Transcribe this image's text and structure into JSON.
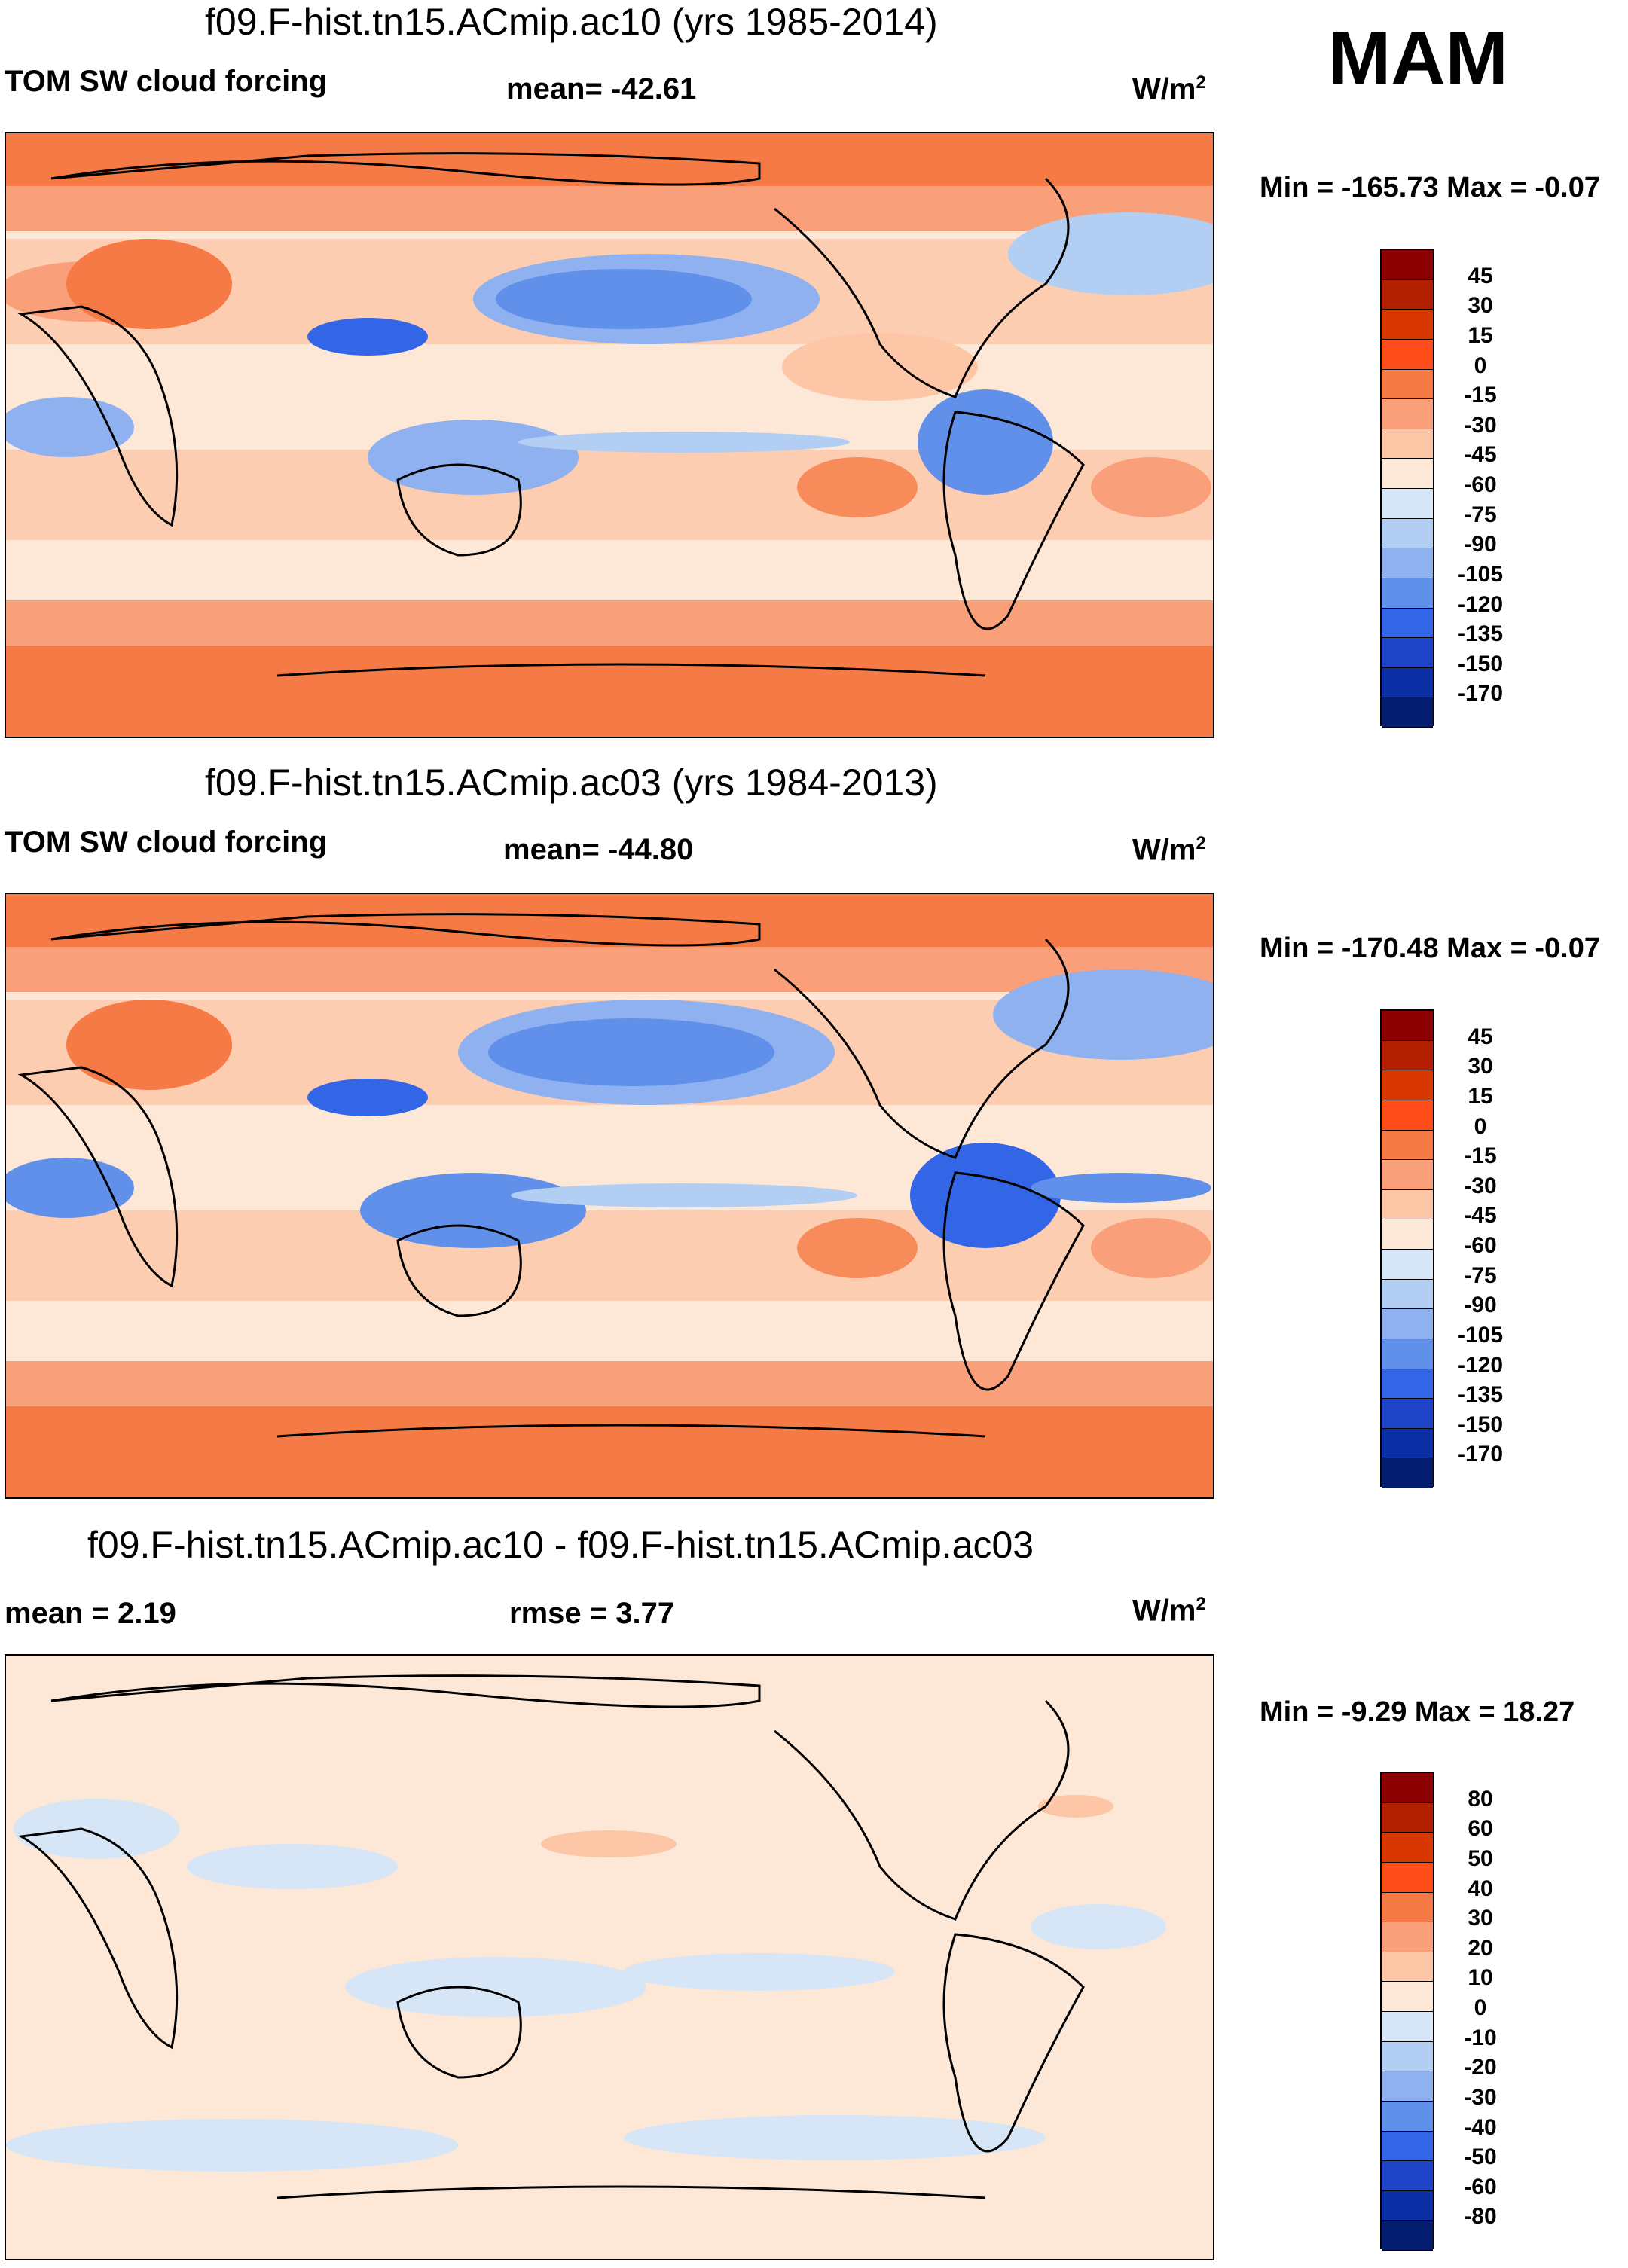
{
  "season": "MAM",
  "panels": [
    {
      "title": "f09.F-hist.tn15.ACmip.ac10 (yrs 1985-2014)",
      "left_label": "TOM SW cloud forcing",
      "stat1": "mean= -42.61",
      "stat2": "",
      "units": "W/m",
      "units_sup": "2",
      "minmax": "Min = -165.73 Max =  -0.07",
      "colorbar_labels": [
        "45",
        "30",
        "15",
        "0",
        "-15",
        "-30",
        "-45",
        "-60",
        "-75",
        "-90",
        "-105",
        "-120",
        "-135",
        "-150",
        "-170"
      ],
      "colorbar_colors": [
        "#8b0000",
        "#b22000",
        "#d83700",
        "#ff4d1a",
        "#f57a45",
        "#f9a07a",
        "#fcc6a7",
        "#fde8d8",
        "#d6e6f7",
        "#b3cef3",
        "#8fb1ef",
        "#6190ea",
        "#3366e6",
        "#1f44c8",
        "#0a2ea3",
        "#041c6e"
      ],
      "mean_value": -42.61,
      "min_value": -165.73,
      "max_value": -0.07
    },
    {
      "title": "f09.F-hist.tn15.ACmip.ac03 (yrs 1984-2013)",
      "left_label": "TOM SW cloud forcing",
      "stat1": "mean= -44.80",
      "stat2": "",
      "units": "W/m",
      "units_sup": "2",
      "minmax": "Min = -170.48 Max =  -0.07",
      "colorbar_labels": [
        "45",
        "30",
        "15",
        "0",
        "-15",
        "-30",
        "-45",
        "-60",
        "-75",
        "-90",
        "-105",
        "-120",
        "-135",
        "-150",
        "-170"
      ],
      "colorbar_colors": [
        "#8b0000",
        "#b22000",
        "#d83700",
        "#ff4d1a",
        "#f57a45",
        "#f9a07a",
        "#fcc6a7",
        "#fde8d8",
        "#d6e6f7",
        "#b3cef3",
        "#8fb1ef",
        "#6190ea",
        "#3366e6",
        "#1f44c8",
        "#0a2ea3",
        "#041c6e"
      ],
      "mean_value": -44.8,
      "min_value": -170.48,
      "max_value": -0.07
    },
    {
      "title": "f09.F-hist.tn15.ACmip.ac10 - f09.F-hist.tn15.ACmip.ac03",
      "left_label": "mean =   2.19",
      "stat1": "rmse =   3.77",
      "stat2": "",
      "units": "W/m",
      "units_sup": "2",
      "minmax": "Min =  -9.29 Max =  18.27",
      "colorbar_labels": [
        "80",
        "60",
        "50",
        "40",
        "30",
        "20",
        "10",
        "0",
        "-10",
        "-20",
        "-30",
        "-40",
        "-50",
        "-60",
        "-80"
      ],
      "colorbar_colors": [
        "#8b0000",
        "#b22000",
        "#d83700",
        "#ff4d1a",
        "#f57a45",
        "#f9a07a",
        "#fcc6a7",
        "#fde8d8",
        "#d6e6f7",
        "#b3cef3",
        "#8fb1ef",
        "#6190ea",
        "#3366e6",
        "#1f44c8",
        "#0a2ea3",
        "#041c6e"
      ],
      "mean_value": 2.19,
      "rmse_value": 3.77,
      "min_value": -9.29,
      "max_value": 18.27
    }
  ]
}
